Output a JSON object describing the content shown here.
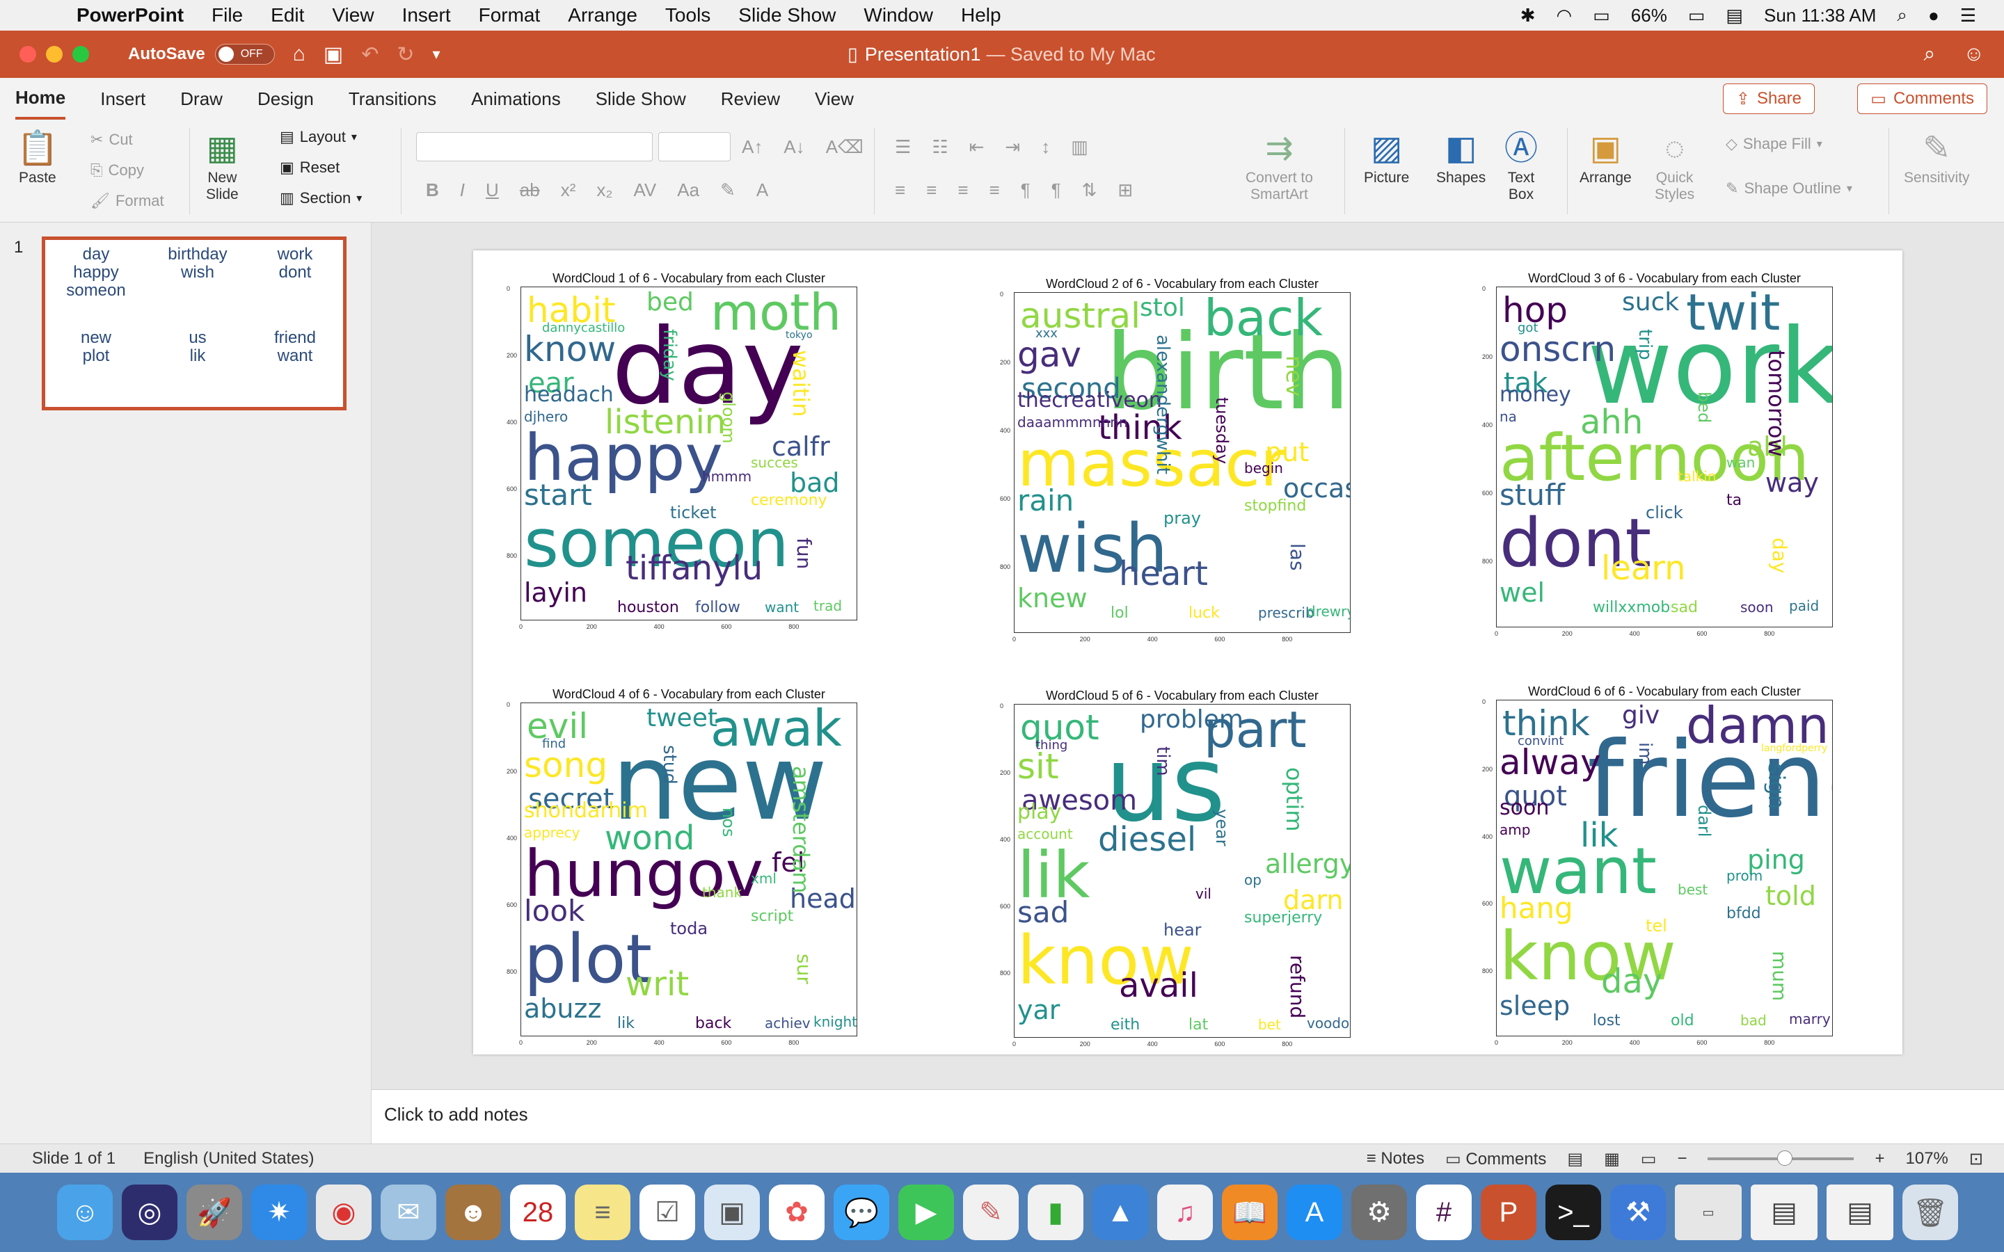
{
  "menubar": {
    "app_name": "PowerPoint",
    "items": [
      "File",
      "Edit",
      "View",
      "Insert",
      "Format",
      "Arrange",
      "Tools",
      "Slide Show",
      "Window",
      "Help"
    ],
    "battery": "66%",
    "clock": "Sun 11:38 AM"
  },
  "titlebar": {
    "autosave_label": "AutoSave",
    "autosave_state": "OFF",
    "doc_name": "Presentation1",
    "doc_status": "— Saved to My Mac"
  },
  "ribbon_tabs": {
    "tabs": [
      "Home",
      "Insert",
      "Draw",
      "Design",
      "Transitions",
      "Animations",
      "Slide Show",
      "Review",
      "View"
    ],
    "active": "Home",
    "share_label": "Share",
    "comments_label": "Comments"
  },
  "ribbon": {
    "paste": "Paste",
    "cut": "Cut",
    "copy": "Copy",
    "format": "Format",
    "new_slide_1": "New",
    "new_slide_2": "Slide",
    "layout": "Layout",
    "reset": "Reset",
    "section": "Section",
    "convert_1": "Convert to",
    "convert_2": "SmartArt",
    "picture": "Picture",
    "shapes": "Shapes",
    "text_box_1": "Text",
    "text_box_2": "Box",
    "arrange": "Arrange",
    "quick_styles_1": "Quick",
    "quick_styles_2": "Styles",
    "shape_fill": "Shape Fill",
    "shape_outline": "Shape Outline",
    "sensitivity": "Sensitivity"
  },
  "thumbnails": {
    "slide_number": "1"
  },
  "slide": {
    "clouds": [
      {
        "title": "WordCloud 1 of 6 - Vocabulary from each Cluster",
        "words": [
          "day",
          "happy",
          "someon",
          "moth",
          "habit",
          "know",
          "ear",
          "listenin",
          "tiffanylu",
          "start",
          "layin",
          "calfr",
          "bad",
          "bed",
          "waitin",
          "headach",
          "friday",
          "gloom",
          "fun",
          "ticket",
          "houston",
          "follow",
          "want",
          "trad",
          "ceremony",
          "djhero",
          "dannycastillo",
          "succes",
          "hmmm",
          "tokyo"
        ]
      },
      {
        "title": "WordCloud 2 of 6 - Vocabulary from each Cluster",
        "words": [
          "birthday",
          "massacr",
          "wish",
          "back",
          "austral",
          "gav",
          "second",
          "think",
          "heart",
          "rain",
          "knew",
          "put",
          "occas",
          "stol",
          "nev",
          "thecreativeon",
          "alexandergwhit",
          "tuesday",
          "las",
          "pray",
          "lol",
          "luck",
          "prescrib",
          "drewryanscot",
          "stopfind",
          "daaammmnnnn",
          "xxx",
          "begin"
        ]
      },
      {
        "title": "WordCloud 3 of 6 - Vocabulary from each Cluster",
        "words": [
          "work",
          "afternoon",
          "dont",
          "twit",
          "hop",
          "onscrn",
          "tak",
          "ahh",
          "learn",
          "stuff",
          "wel",
          "abl",
          "way",
          "suck",
          "tomorrow",
          "money",
          "trip",
          "bed",
          "day",
          "click",
          "willxxmob",
          "sad",
          "soon",
          "paid",
          "ta",
          "na",
          "got",
          "wan",
          "talkin"
        ]
      },
      {
        "title": "WordCloud 4 of 6 - Vocabulary from each Cluster",
        "words": [
          "new",
          "hungov",
          "plot",
          "awak",
          "evil",
          "song",
          "secret",
          "wond",
          "writ",
          "look",
          "abuzz",
          "fel",
          "head",
          "tweet",
          "amsterdam",
          "shondarhim",
          "stud",
          "nos",
          "sur",
          "toda",
          "lik",
          "back",
          "achiev",
          "knight",
          "script",
          "apprecy",
          "find",
          "xml",
          "thank"
        ]
      },
      {
        "title": "WordCloud 5 of 6 - Vocabulary from each Cluster",
        "words": [
          "us",
          "lik",
          "know",
          "part",
          "quot",
          "sit",
          "awesom",
          "diesel",
          "avail",
          "sad",
          "yar",
          "allergy",
          "darn",
          "problem",
          "optim",
          "play",
          "tim",
          "year",
          "refund",
          "hear",
          "eith",
          "lat",
          "bet",
          "voodoo",
          "superjerry",
          "account",
          "thing",
          "op",
          "vil"
        ]
      },
      {
        "title": "WordCloud 6 of 6 - Vocabulary from each Cluster",
        "words": [
          "friend",
          "want",
          "know",
          "damn",
          "think",
          "alway",
          "quot",
          "lik",
          "day",
          "hang",
          "sleep",
          "ping",
          "told",
          "giv",
          "sign",
          "soon",
          "im",
          "darl",
          "mum",
          "tel",
          "lost",
          "old",
          "bad",
          "marry",
          "bfdd",
          "amp",
          "convint",
          "prom",
          "best",
          "langfordperry"
        ]
      }
    ],
    "y_ticks": [
      "0",
      "200",
      "400",
      "600",
      "800"
    ],
    "x_ticks": [
      "0",
      "200",
      "400",
      "600",
      "800"
    ]
  },
  "notes": {
    "placeholder": "Click to add notes"
  },
  "statusbar": {
    "slide_info": "Slide 1 of 1",
    "language": "English (United States)",
    "notes_label": "Notes",
    "comments_label": "Comments",
    "zoom": "107%"
  }
}
